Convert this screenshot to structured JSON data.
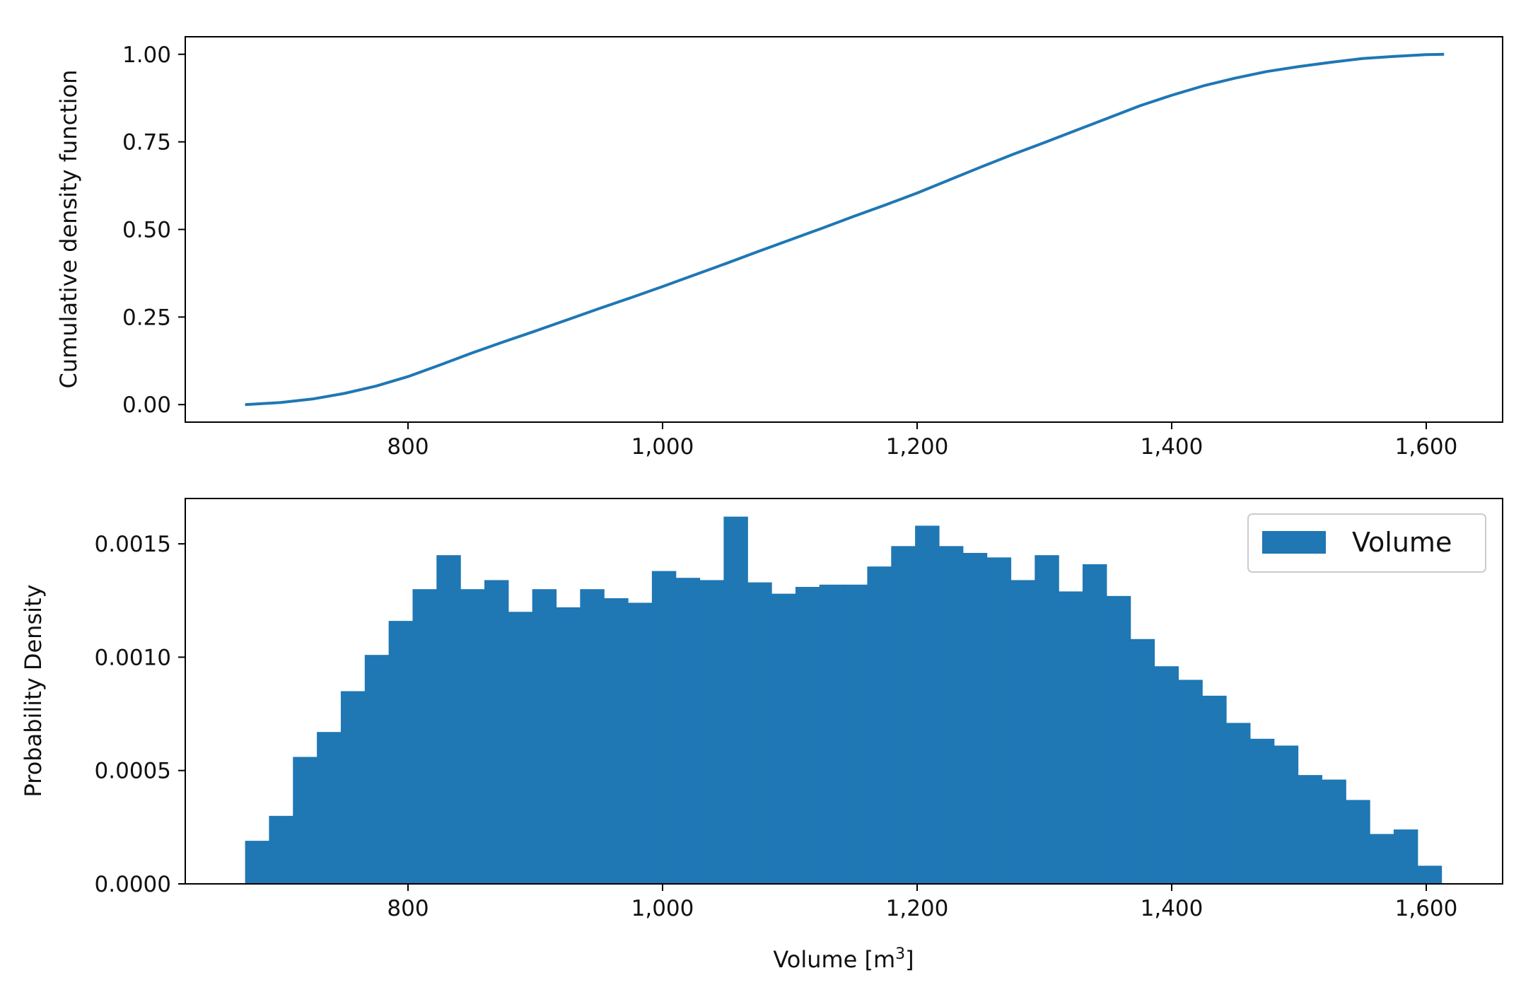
{
  "chart_data": [
    {
      "type": "line",
      "title": "",
      "xlabel": "",
      "ylabel": "Cumulative density function",
      "xlim": [
        625,
        1660
      ],
      "ylim": [
        -0.05,
        1.05
      ],
      "xticks": [
        800,
        1000,
        1200,
        1400,
        1600
      ],
      "xtick_labels": [
        "800",
        "1,000",
        "1,200",
        "1,400",
        "1,600"
      ],
      "yticks": [
        0.0,
        0.25,
        0.5,
        0.75,
        1.0
      ],
      "ytick_labels": [
        "0.00",
        "0.25",
        "0.50",
        "0.75",
        "1.00"
      ],
      "grid": false,
      "color": "#1f77b4",
      "series": [
        {
          "x": [
            672,
            700,
            725,
            750,
            775,
            800,
            825,
            850,
            875,
            900,
            925,
            950,
            975,
            1000,
            1025,
            1050,
            1075,
            1100,
            1125,
            1150,
            1175,
            1200,
            1225,
            1250,
            1275,
            1300,
            1325,
            1350,
            1375,
            1400,
            1425,
            1450,
            1475,
            1500,
            1525,
            1550,
            1575,
            1600,
            1614
          ],
          "y": [
            0.0,
            0.006,
            0.016,
            0.032,
            0.053,
            0.08,
            0.113,
            0.147,
            0.179,
            0.21,
            0.242,
            0.274,
            0.305,
            0.337,
            0.37,
            0.403,
            0.437,
            0.47,
            0.503,
            0.537,
            0.57,
            0.604,
            0.641,
            0.678,
            0.714,
            0.748,
            0.783,
            0.818,
            0.853,
            0.883,
            0.91,
            0.932,
            0.951,
            0.965,
            0.977,
            0.988,
            0.994,
            0.999,
            1.0
          ]
        }
      ]
    },
    {
      "type": "bar",
      "title": "",
      "xlabel": "Volume [m",
      "xlabel_sup": "3",
      "xlabel_end": "]",
      "ylabel": "Probability Density",
      "xlim": [
        625,
        1660
      ],
      "ylim": [
        0,
        0.0017
      ],
      "xticks": [
        800,
        1000,
        1200,
        1400,
        1600
      ],
      "xtick_labels": [
        "800",
        "1,000",
        "1,200",
        "1,400",
        "1,600"
      ],
      "yticks": [
        0.0,
        0.0005,
        0.001,
        0.0015
      ],
      "ytick_labels": [
        "0.0000",
        "0.0005",
        "0.0010",
        "0.0015"
      ],
      "grid": false,
      "legend": {
        "placement": "top-right",
        "entries": [
          {
            "name": "Volume",
            "color": "#1f77b4"
          }
        ]
      },
      "color": "#1f77b4",
      "bin_start": 672,
      "bin_width": 18.8,
      "series": [
        {
          "name": "Volume",
          "values": [
            0.00019,
            0.0003,
            0.00056,
            0.00067,
            0.00085,
            0.00101,
            0.00116,
            0.0013,
            0.00145,
            0.0013,
            0.00134,
            0.0012,
            0.0013,
            0.00122,
            0.0013,
            0.00126,
            0.00124,
            0.00138,
            0.00135,
            0.00134,
            0.00162,
            0.00133,
            0.00128,
            0.00131,
            0.00132,
            0.00132,
            0.0014,
            0.00149,
            0.00158,
            0.00149,
            0.00146,
            0.00144,
            0.00134,
            0.00145,
            0.00129,
            0.00141,
            0.00127,
            0.00108,
            0.00096,
            0.0009,
            0.00083,
            0.00071,
            0.00064,
            0.00061,
            0.00048,
            0.00046,
            0.00037,
            0.00022,
            0.00024,
            8e-05
          ]
        }
      ]
    }
  ]
}
